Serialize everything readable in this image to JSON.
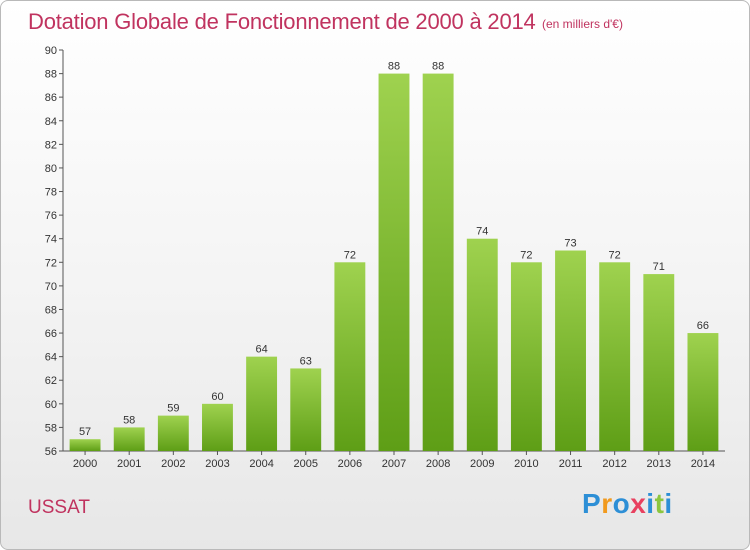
{
  "header": {
    "title": "Dotation Globale de Fonctionnement de 2000 à 2014",
    "unit": "(en milliers d'€)"
  },
  "footer": {
    "commune": "USSAT",
    "logo": [
      "P",
      "r",
      "o",
      "x",
      "i",
      "t",
      "i"
    ],
    "logo_colors": [
      "#2d8fd6",
      "#f19a1e",
      "#2d8fd6",
      "#e8405f",
      "#2d8fd6",
      "#8cc63f",
      "#2d8fd6"
    ]
  },
  "chart_data": {
    "type": "bar",
    "categories": [
      "2000",
      "2001",
      "2002",
      "2003",
      "2004",
      "2005",
      "2006",
      "2007",
      "2008",
      "2009",
      "2010",
      "2011",
      "2012",
      "2013",
      "2014"
    ],
    "values": [
      57,
      58,
      59,
      60,
      64,
      63,
      72,
      88,
      88,
      74,
      72,
      73,
      72,
      71,
      66
    ],
    "title": "Dotation Globale de Fonctionnement de 2000 à 2014",
    "subtitle": "(en milliers d'€)",
    "xlabel": "",
    "ylabel": "",
    "ylim": [
      56,
      90
    ],
    "yticks": [
      56,
      58,
      60,
      62,
      64,
      66,
      68,
      70,
      72,
      74,
      76,
      78,
      80,
      82,
      84,
      86,
      88,
      90
    ],
    "bar_color_top": "#9fd24f",
    "bar_color_bottom": "#5e9e16",
    "grid": false,
    "legend": "none"
  }
}
